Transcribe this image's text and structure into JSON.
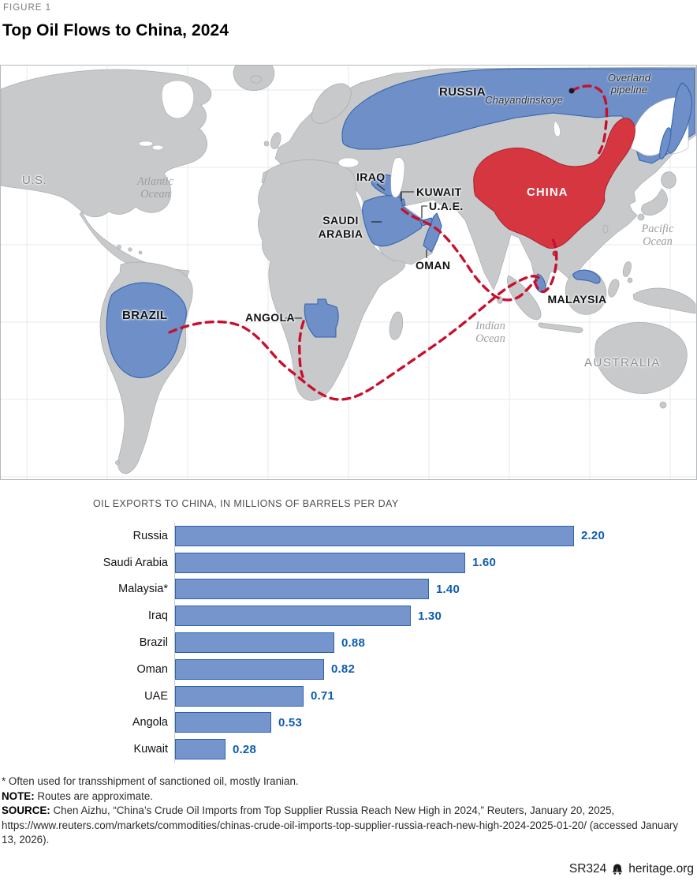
{
  "figure": {
    "kicker": "FIGURE 1",
    "title": "Top Oil Flows to China, 2024"
  },
  "map": {
    "labels": {
      "russia": "RUSSIA",
      "us": "U.S.",
      "china": "CHINA",
      "iraq": "IRAQ",
      "kuwait": "KUWAIT",
      "uae": "U.A.E.",
      "saudi_line1": "SAUDI",
      "saudi_line2": "ARABIA",
      "oman": "OMAN",
      "malaysia": "MALAYSIA",
      "brazil": "BRAZIL",
      "angola": "ANGOLA",
      "australia": "AUSTRALIA",
      "atlantic_line1": "Atlantic",
      "atlantic_line2": "Ocean",
      "pacific_line1": "Pacific",
      "pacific_line2": "Ocean",
      "indian_line1": "Indian",
      "indian_line2": "Ocean",
      "chayandinskoye": "Chayandinskoye",
      "pipeline_line1": "Overland",
      "pipeline_line2": "pipeline"
    }
  },
  "chart": {
    "heading": "OIL EXPORTS TO CHINA, IN MILLIONS OF BARRELS PER DAY"
  },
  "chart_data": {
    "type": "bar",
    "orientation": "horizontal",
    "title": "OIL EXPORTS TO CHINA, IN MILLIONS OF BARRELS PER DAY",
    "categories": [
      "Russia",
      "Saudi Arabia",
      "Malaysia*",
      "Iraq",
      "Brazil",
      "Oman",
      "UAE",
      "Angola",
      "Kuwait"
    ],
    "values": [
      2.2,
      1.6,
      1.4,
      1.3,
      0.88,
      0.82,
      0.71,
      0.53,
      0.28
    ],
    "value_labels": [
      "2.20",
      "1.60",
      "1.40",
      "1.30",
      "0.88",
      "0.82",
      "0.71",
      "0.53",
      "0.28"
    ],
    "xlabel": "Millions of barrels per day",
    "xlim": [
      0,
      2.4
    ],
    "grid": false,
    "legend": false
  },
  "notes": {
    "asterisk_note": "* Often used for transshipment of sanctioned oil, mostly Iranian.",
    "note_label": "NOTE:",
    "note_text": " Routes are approximate.",
    "source_label": "SOURCE:",
    "source_text": " Chen Aizhu, “China’s Crude Oil Imports from Top Supplier Russia Reach New High in 2024,” Reuters, January 20, 2025, https://www.reuters.com/markets/commodities/chinas-crude-oil-imports-top-supplier-russia-reach-new-high-2024-2025-01-20/ (accessed January 13, 2026)."
  },
  "footer": {
    "report_id": "SR324",
    "site": "heritage.org",
    "logo_icon": "liberty-bell-icon"
  },
  "colors": {
    "supplier_blue": "#6e8fc7",
    "china_red": "#d6363f",
    "route_red": "#c8102e",
    "bar_fill": "#7595cc",
    "bar_stroke": "#2c63ae",
    "value_blue": "#0f5cab",
    "land_gray": "#c7c9cb",
    "ocean_white": "#ffffff"
  }
}
